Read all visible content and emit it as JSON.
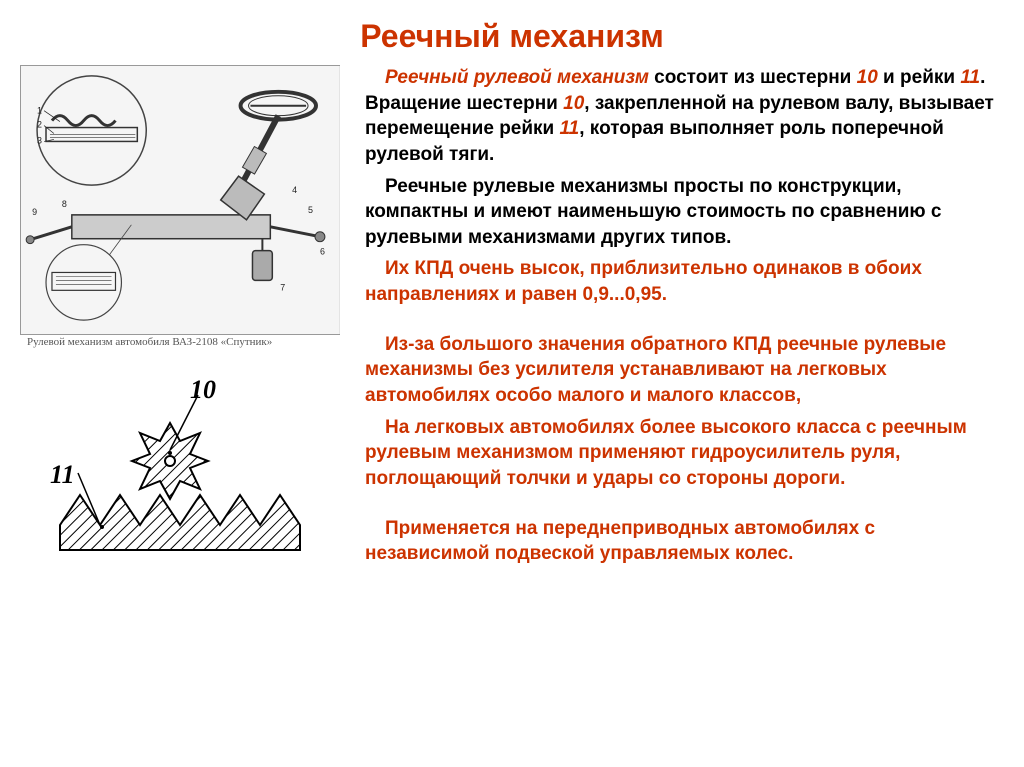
{
  "title": "Реечный механизм",
  "colors": {
    "accent": "#cc3300",
    "text": "#000000",
    "background": "#ffffff",
    "figure_bg": "#f5f5f5"
  },
  "figure1": {
    "caption": "Рулевой механизм автомобиля ВАЗ-2108 «Спутник»",
    "callout_labels": [
      "1",
      "2",
      "3",
      "4",
      "5",
      "6",
      "7",
      "8",
      "9"
    ]
  },
  "figure2": {
    "label_gear": "10",
    "label_rack": "11",
    "gear_teeth": 8,
    "rack_teeth": 6
  },
  "paragraphs": [
    {
      "indent": true,
      "parts": [
        {
          "text": "Реечный рулевой механизм",
          "color": "accent",
          "italic": true
        },
        {
          "text": "  состоит из шестерни ",
          "color": "text"
        },
        {
          "text": "10",
          "color": "accent",
          "italic": true
        },
        {
          "text": " и рейки ",
          "color": "text"
        },
        {
          "text": "11",
          "color": "accent",
          "italic": true
        },
        {
          "text": ". Вращение шестерни ",
          "color": "text"
        },
        {
          "text": "10",
          "color": "accent",
          "italic": true
        },
        {
          "text": ", закрепленной на рулевом валу, вызывает перемещение рейки ",
          "color": "text"
        },
        {
          "text": "11",
          "color": "accent",
          "italic": true
        },
        {
          "text": ", которая выполняет роль поперечной рулевой тяги.",
          "color": "text"
        }
      ]
    },
    {
      "indent": true,
      "parts": [
        {
          "text": "Реечные рулевые механизмы просты по конструкции, компактны и имеют наименьшую стоимость по сравнению с рулевыми механизмами других типов.",
          "color": "text"
        }
      ]
    },
    {
      "indent": true,
      "parts": [
        {
          "text": "Их КПД очень высок, приблизительно одинаков в обоих направлениях и равен 0,9...0,95.",
          "color": "accent"
        }
      ]
    },
    {
      "spacer": true
    },
    {
      "indent": true,
      "parts": [
        {
          "text": "Из-за большого значения обратного КПД реечные рулевые механизмы без усилителя устанавливают на легковых автомобилях особо малого и малого классов,",
          "color": "accent"
        }
      ]
    },
    {
      "indent": true,
      "parts": [
        {
          "text": "На легковых автомобилях более высокого класса с реечным рулевым механизмом применяют гидроусилитель руля, поглощающий толчки и удары со стороны дороги.",
          "color": "accent"
        }
      ]
    },
    {
      "spacer": true
    },
    {
      "indent": true,
      "parts": [
        {
          "text": "Применяется на переднеприводных автомобилях с независимой подвеской управляемых колес.",
          "color": "accent"
        }
      ]
    }
  ]
}
